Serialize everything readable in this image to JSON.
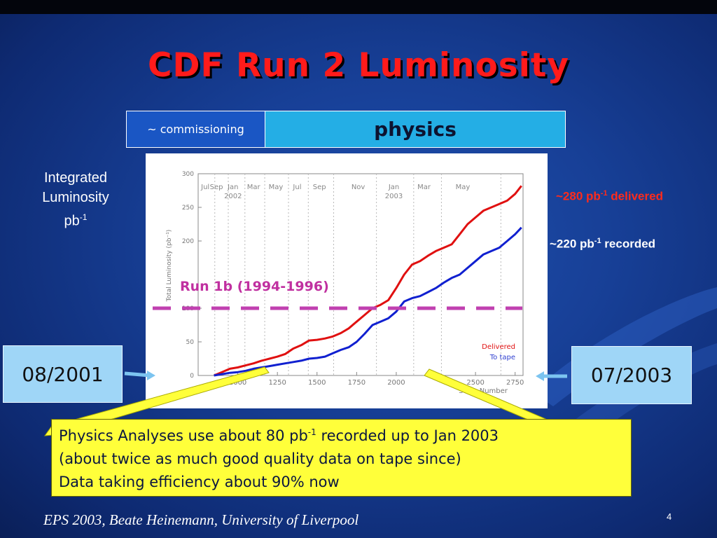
{
  "slide": {
    "title": "CDF Run 2 Luminosity",
    "footer": "EPS 2003, Beate Heinemann, University of Liverpool",
    "page_number": "4"
  },
  "phases": {
    "commissioning": "~ commissioning",
    "physics": "physics"
  },
  "left_label": {
    "line1": "Integrated",
    "line2": "Luminosity",
    "unit_base": "pb",
    "unit_exp": "-1"
  },
  "annotations": {
    "delivered_prefix": "~280 pb",
    "delivered_exp": "-1",
    "delivered_suffix": " delivered",
    "recorded_prefix": "~220 pb",
    "recorded_exp": "-1",
    "recorded_suffix": " recorded",
    "run1b": "Run 1b (1994-1996)"
  },
  "dates": {
    "start": "08/2001",
    "end": "07/2003"
  },
  "note": {
    "line1_a": "Physics Analyses use about 80 pb",
    "line1_exp": "-1",
    "line1_b": " recorded up to Jan 2003",
    "line2": "(about twice as much good quality data on tape since)",
    "line3": "Data taking efficiency about 90% now"
  },
  "colors": {
    "delivered": "#e01010",
    "to_tape": "#1020d0",
    "run1b_line": "#c040b0",
    "run1b_text": "#c030a0",
    "callout": "#ffff3a",
    "arrow": "#7cc4f0"
  },
  "chart_data": {
    "type": "line",
    "title": "",
    "xlabel": "Store Number",
    "ylabel": "Total Luminosity (pb⁻¹)",
    "xlim": [
      750,
      2800
    ],
    "ylim": [
      0,
      300
    ],
    "x_ticks": [
      1000,
      1250,
      1500,
      1750,
      2000,
      2500,
      2750
    ],
    "y_ticks": [
      0,
      50,
      100,
      200,
      250,
      300
    ],
    "x_tick_labels": [
      "1000",
      "1250",
      "1500",
      "1750",
      "2000",
      "2500",
      "2750"
    ],
    "y_tick_labels": [
      "0",
      "50",
      "100",
      "200",
      "250",
      "300"
    ],
    "time_labels": [
      {
        "x": 795,
        "line1": "Jul",
        "line2": ""
      },
      {
        "x": 865,
        "line1": "Sep",
        "line2": ""
      },
      {
        "x": 970,
        "line1": "Jan",
        "line2": "2002"
      },
      {
        "x": 1100,
        "line1": "Mar",
        "line2": ""
      },
      {
        "x": 1240,
        "line1": "May",
        "line2": ""
      },
      {
        "x": 1375,
        "line1": "Jul",
        "line2": ""
      },
      {
        "x": 1515,
        "line1": "Sep",
        "line2": ""
      },
      {
        "x": 1760,
        "line1": "Nov",
        "line2": ""
      },
      {
        "x": 1985,
        "line1": "Jan",
        "line2": "2003"
      },
      {
        "x": 2175,
        "line1": "Mar",
        "line2": ""
      },
      {
        "x": 2420,
        "line1": "May",
        "line2": ""
      }
    ],
    "time_gridlines": [
      855,
      940,
      1045,
      1170,
      1320,
      1445,
      1605,
      1875,
      2110,
      2285,
      2660
    ],
    "series": [
      {
        "name": "Delivered",
        "x": [
          850,
          900,
          950,
          1000,
          1050,
          1100,
          1150,
          1200,
          1250,
          1300,
          1350,
          1400,
          1450,
          1500,
          1550,
          1600,
          1650,
          1700,
          1750,
          1800,
          1850,
          1900,
          1950,
          2000,
          2050,
          2100,
          2150,
          2200,
          2250,
          2300,
          2350,
          2400,
          2450,
          2500,
          2550,
          2600,
          2650,
          2700,
          2750,
          2790
        ],
        "values": [
          0,
          5,
          10,
          12,
          15,
          18,
          22,
          25,
          28,
          32,
          40,
          45,
          52,
          53,
          55,
          58,
          63,
          70,
          80,
          90,
          100,
          105,
          112,
          130,
          150,
          165,
          170,
          178,
          185,
          190,
          195,
          210,
          225,
          235,
          245,
          250,
          255,
          260,
          270,
          282
        ]
      },
      {
        "name": "To tape",
        "x": [
          850,
          900,
          950,
          1000,
          1050,
          1100,
          1150,
          1200,
          1250,
          1300,
          1350,
          1400,
          1450,
          1500,
          1550,
          1600,
          1650,
          1700,
          1750,
          1800,
          1850,
          1900,
          1950,
          2000,
          2050,
          2100,
          2150,
          2200,
          2250,
          2300,
          2350,
          2400,
          2450,
          2500,
          2550,
          2600,
          2650,
          2700,
          2750,
          2790
        ],
        "values": [
          0,
          2,
          4,
          5,
          7,
          10,
          12,
          14,
          16,
          18,
          20,
          22,
          25,
          26,
          28,
          33,
          38,
          42,
          50,
          62,
          75,
          80,
          85,
          95,
          110,
          115,
          118,
          124,
          130,
          138,
          145,
          150,
          160,
          170,
          180,
          185,
          190,
          200,
          210,
          220
        ]
      }
    ],
    "legend": {
      "placement": "bottom-right",
      "entries": [
        "Delivered",
        "To tape"
      ]
    },
    "reference_lines": [
      {
        "label": "Run 1b (1994-1996)",
        "y": 100
      }
    ],
    "grid": false
  }
}
